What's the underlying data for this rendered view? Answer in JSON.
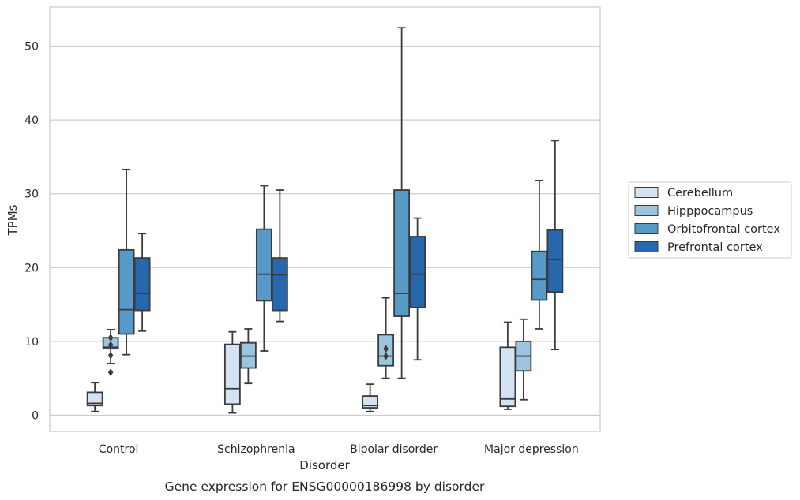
{
  "chart_data": {
    "type": "box",
    "title": "",
    "caption": "Gene expression for ENSG00000186998 by disorder",
    "xlabel": "Disorder",
    "ylabel": "TPMs",
    "ylim": [
      -2.2,
      55.3
    ],
    "yticks": [
      0,
      10,
      20,
      30,
      40,
      50
    ],
    "grid": "horizontal",
    "legend_position": "right",
    "categories": [
      "Control",
      "Schizophrenia",
      "Bipolar disorder",
      "Major depression"
    ],
    "series": [
      {
        "name": "Cerebellum",
        "color": "#d4e3f2",
        "boxes": [
          {
            "whislo": 0.5,
            "q1": 1.3,
            "med": 1.6,
            "q3": 3.1,
            "whishi": 4.4,
            "fliers": []
          },
          {
            "whislo": 0.3,
            "q1": 1.5,
            "med": 3.6,
            "q3": 9.6,
            "whishi": 11.3,
            "fliers": []
          },
          {
            "whislo": 0.5,
            "q1": 1.0,
            "med": 1.3,
            "q3": 2.6,
            "whishi": 4.2,
            "fliers": []
          },
          {
            "whislo": 0.8,
            "q1": 1.2,
            "med": 2.2,
            "q3": 9.2,
            "whishi": 12.6,
            "fliers": []
          }
        ]
      },
      {
        "name": "Hipppocampus",
        "color": "#9bc4df",
        "boxes": [
          {
            "whislo": 7.0,
            "q1": 9.0,
            "med": 9.2,
            "q3": 10.5,
            "whishi": 11.6,
            "fliers": [
              10.5,
              9.5,
              8.1,
              5.8
            ]
          },
          {
            "whislo": 4.3,
            "q1": 6.4,
            "med": 8.0,
            "q3": 9.8,
            "whishi": 11.7,
            "fliers": []
          },
          {
            "whislo": 5.0,
            "q1": 6.7,
            "med": 8.0,
            "q3": 10.9,
            "whishi": 15.9,
            "fliers": [
              9.0,
              8.0
            ]
          },
          {
            "whislo": 2.1,
            "q1": 6.0,
            "med": 8.0,
            "q3": 10.0,
            "whishi": 13.0,
            "fliers": []
          }
        ]
      },
      {
        "name": "Orbitofrontal cortex",
        "color": "#5799c7",
        "boxes": [
          {
            "whislo": 8.2,
            "q1": 11.0,
            "med": 14.3,
            "q3": 22.4,
            "whishi": 33.3,
            "fliers": []
          },
          {
            "whislo": 8.7,
            "q1": 15.5,
            "med": 19.1,
            "q3": 25.2,
            "whishi": 31.1,
            "fliers": []
          },
          {
            "whislo": 5.0,
            "q1": 13.4,
            "med": 16.5,
            "q3": 30.5,
            "whishi": 52.5,
            "fliers": []
          },
          {
            "whislo": 11.7,
            "q1": 15.6,
            "med": 18.4,
            "q3": 22.2,
            "whishi": 31.8,
            "fliers": []
          }
        ]
      },
      {
        "name": "Prefrontal cortex",
        "color": "#2767ab",
        "boxes": [
          {
            "whislo": 11.4,
            "q1": 14.2,
            "med": 16.5,
            "q3": 21.3,
            "whishi": 24.6,
            "fliers": []
          },
          {
            "whislo": 12.7,
            "q1": 14.2,
            "med": 19.0,
            "q3": 21.3,
            "whishi": 30.5,
            "fliers": []
          },
          {
            "whislo": 7.5,
            "q1": 14.6,
            "med": 19.1,
            "q3": 24.2,
            "whishi": 26.7,
            "fliers": []
          },
          {
            "whislo": 8.9,
            "q1": 16.7,
            "med": 21.1,
            "q3": 25.1,
            "whishi": 37.2,
            "fliers": []
          }
        ]
      }
    ]
  }
}
